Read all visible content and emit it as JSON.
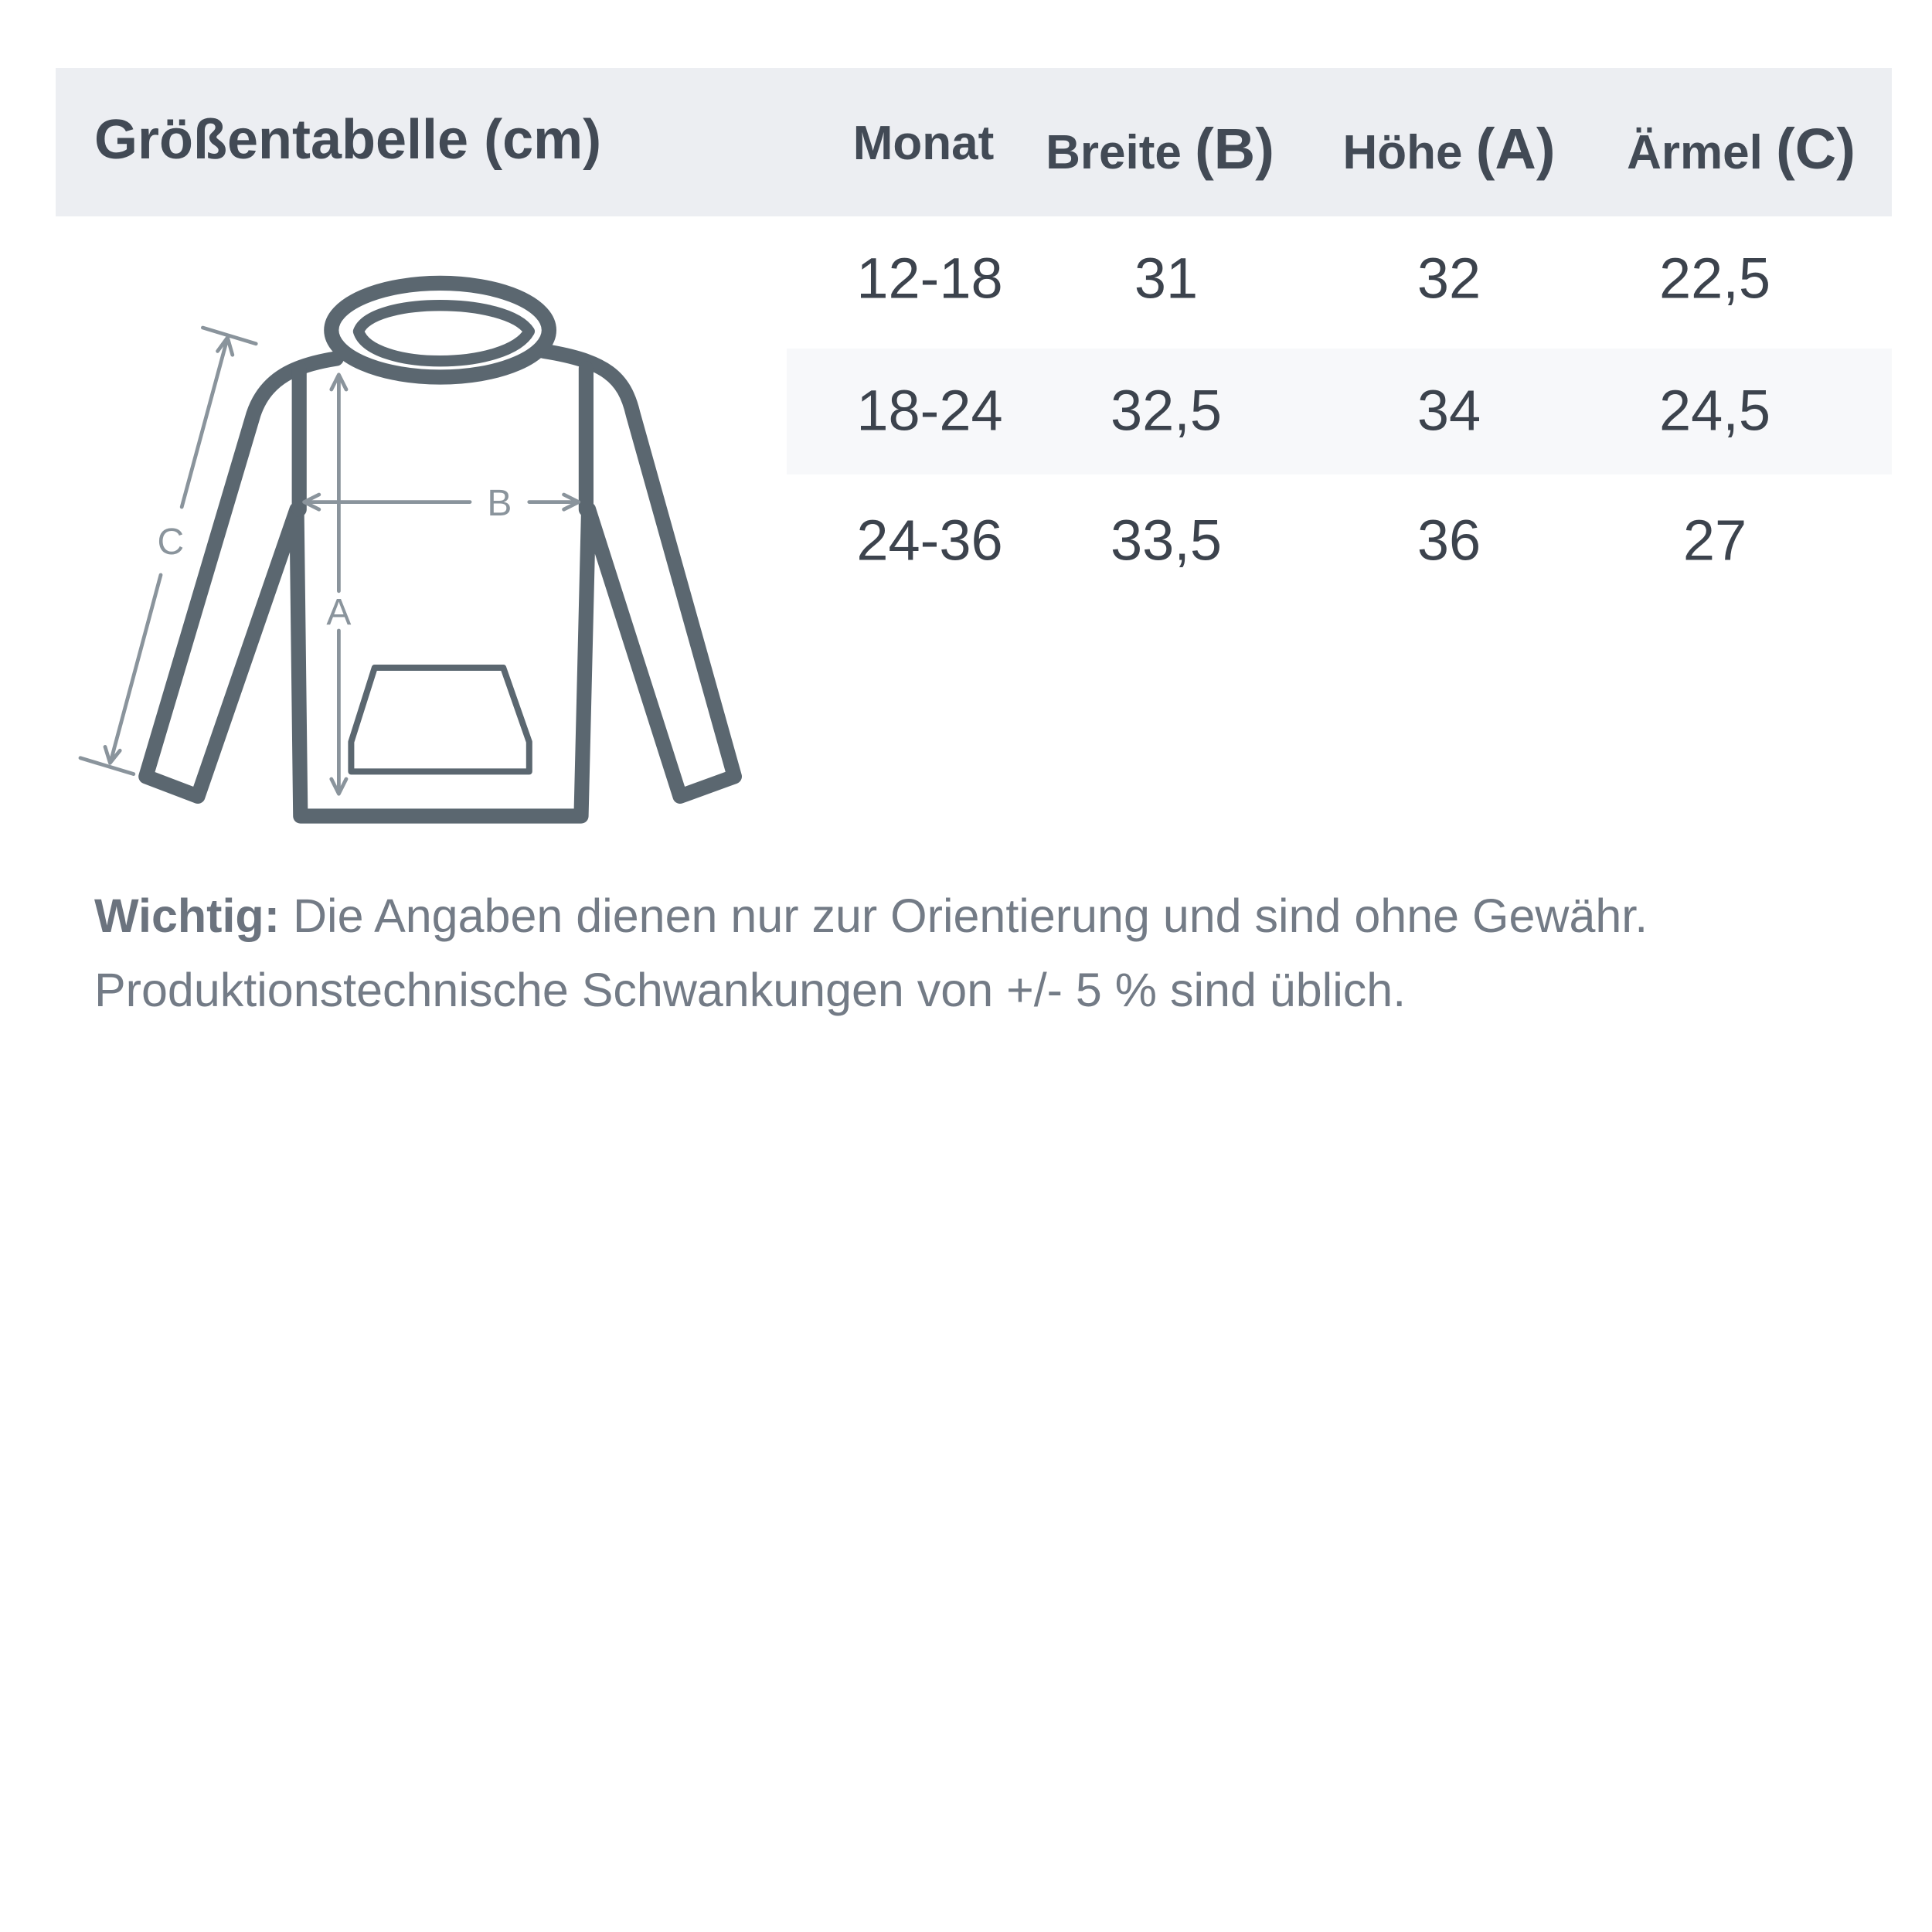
{
  "title": "Größentabelle (cm)",
  "columns": [
    {
      "label": "Monat",
      "suffix": ""
    },
    {
      "label": "Breite ",
      "suffix": "(B)"
    },
    {
      "label": "Höhe ",
      "suffix": "(A)"
    },
    {
      "label": "Ärmel ",
      "suffix": "(C)"
    }
  ],
  "rows": [
    [
      "12-18",
      "31",
      "32",
      "22,5"
    ],
    [
      "18-24",
      "32,5",
      "34",
      "24,5"
    ],
    [
      "24-36",
      "33,5",
      "36",
      "27"
    ]
  ],
  "diagram": {
    "label_a": "A",
    "label_b": "B",
    "label_c": "C",
    "icon": "hoodie-icon"
  },
  "note": {
    "bold": "Wichtig:",
    "line1": " Die Angaben dienen nur zur Orientierung und sind ohne Gewähr.",
    "line2": "Produktionstechnische Schwankungen von +/- 5 % sind üblich."
  },
  "colors": {
    "header_bg": "#eceef2",
    "outline": "#5b6770",
    "text": "#424a55"
  }
}
